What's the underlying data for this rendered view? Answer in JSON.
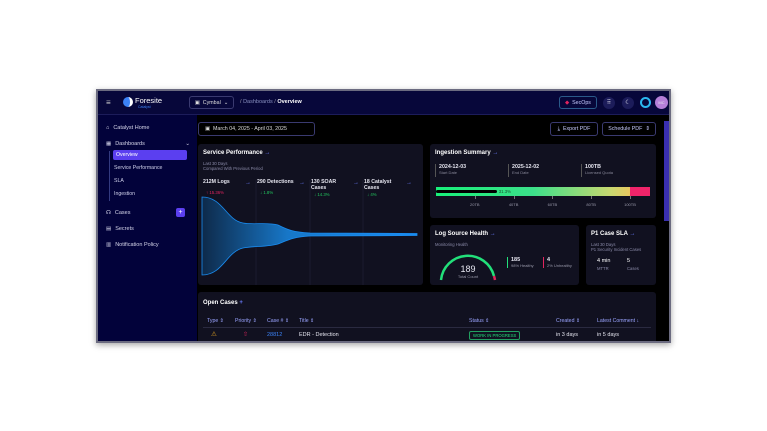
{
  "topbar": {
    "brand": "Foresite",
    "brand_sub": "Catalyst",
    "tenant": "Cymbal",
    "breadcrumb": [
      "Dashboards",
      "Overview"
    ],
    "secops": "SecOps",
    "avatar": "MC"
  },
  "sidebar": {
    "items": [
      {
        "label": "Catalyst Home",
        "icon": "home-icon"
      },
      {
        "label": "Dashboards",
        "icon": "dashboard-icon"
      },
      {
        "label": "Cases",
        "icon": "headset-icon"
      },
      {
        "label": "Secrets",
        "icon": "document-icon"
      },
      {
        "label": "Notification Policy",
        "icon": "bell-icon"
      }
    ],
    "dash_sub": [
      "Overview",
      "Service Performance",
      "SLA",
      "Ingestion"
    ],
    "add": "+"
  },
  "toolbar": {
    "date_range": "March 04, 2025 - April 03, 2025",
    "export": "Export PDF",
    "schedule": "Schedule PDF"
  },
  "service": {
    "title": "Service Performance",
    "sub1": "Last 30 Days",
    "sub2": "Compared With Previous Period",
    "metrics": [
      {
        "label": "212M Logs",
        "delta": "↑ 15.36%",
        "color": "#e0245e"
      },
      {
        "label": "290 Detections",
        "delta": "↓ 1.8%",
        "color": "#22c55e"
      },
      {
        "label": "130 SOAR Cases",
        "delta": "↓ 14.3%",
        "color": "#22c55e"
      },
      {
        "label": "18 Catalyst Cases",
        "delta": "↓ 4%",
        "color": "#22c55e"
      }
    ]
  },
  "ingestion": {
    "title": "Ingestion Summary",
    "start": "2024-12-03",
    "start_label": "Start Date",
    "end": "2025-12-02",
    "end_label": "End Date",
    "quota": "100TB",
    "quota_label": "Licensed Quota",
    "used_percent": 31.3,
    "used_label": "31.3%",
    "ticks": [
      "20TB",
      "40TB",
      "60TB",
      "80TB",
      "100TB"
    ]
  },
  "log_health": {
    "title": "Log Source Health",
    "sub": "Monitoring Health",
    "total": "189",
    "total_label": "Total Count",
    "healthy": "185",
    "healthy_label": "98% Healthy",
    "unhealthy": "4",
    "unhealthy_label": "2% Unhealthy",
    "colors": {
      "healthy": "#22e07a",
      "unhealthy": "#e0245e"
    }
  },
  "sla": {
    "title": "P1 Case SLA",
    "sub1": "Last 30 Days",
    "sub2": "P1 Security Incident Cases",
    "mttr": "4 min",
    "mttr_label": "MTTR",
    "cases": "5",
    "cases_label": "Cases"
  },
  "open_cases": {
    "title": "Open Cases",
    "columns": [
      "Type ⇕",
      "Priority ⇕",
      "Case # ⇕",
      "Title ⇕",
      "Status ⇕",
      "Created ⇕",
      "Latest Comment ↓"
    ],
    "rows": [
      {
        "type": "warning-icon",
        "priority": "high-priority-icon",
        "case": "28812",
        "title": "EDR - Detection",
        "status": "WORK IN PROGRESS",
        "created": "in 3 days",
        "comment": "in 5 days"
      }
    ]
  }
}
